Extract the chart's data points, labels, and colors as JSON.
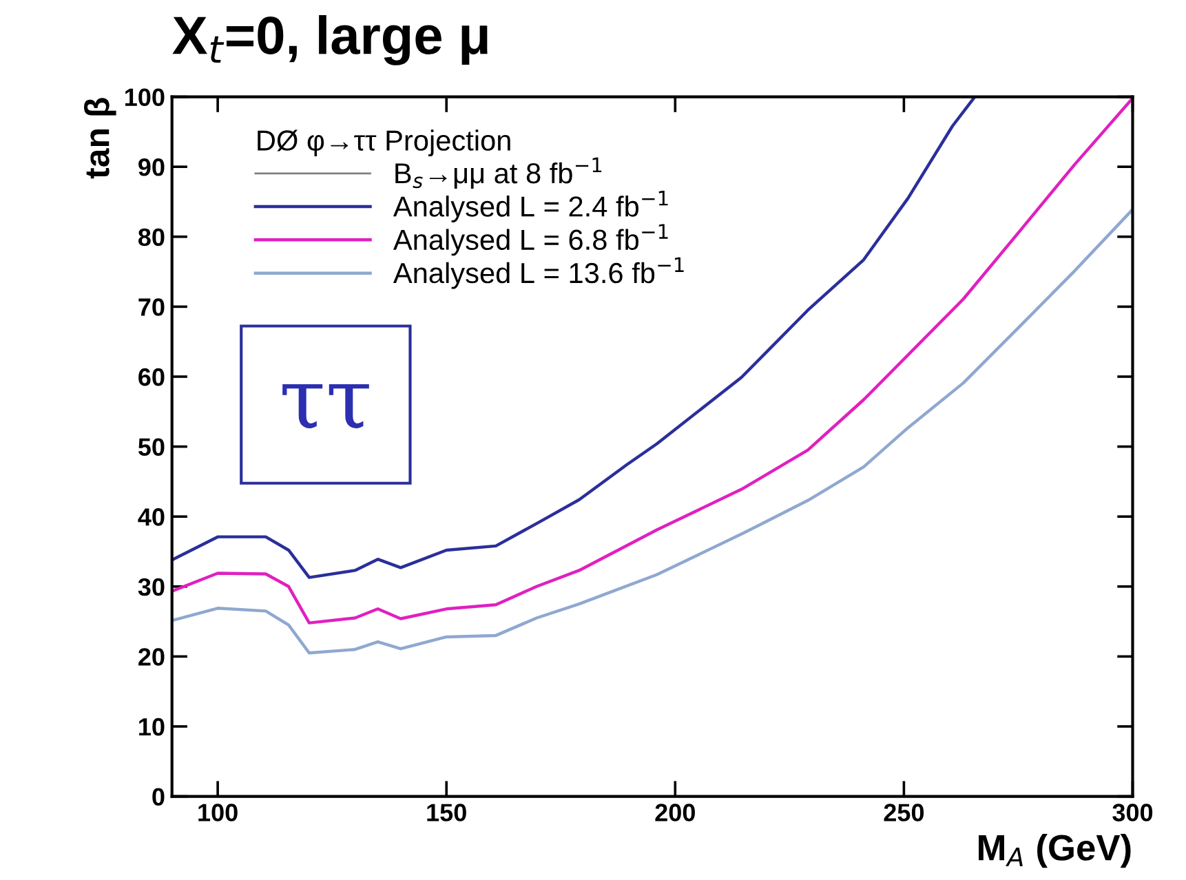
{
  "chart_data": {
    "type": "line",
    "title": "X$_{t}$=0, large μ",
    "xlabel": "M$_{A}$ (GeV)",
    "ylabel": "tan β",
    "legend_title": "DØ φ→ττ Projection",
    "xlim": [
      90,
      300
    ],
    "xticks": [
      100,
      150,
      200,
      250,
      300
    ],
    "ylim": [
      0,
      100
    ],
    "yticks": [
      0,
      10,
      20,
      30,
      40,
      50,
      60,
      70,
      80,
      90,
      100
    ],
    "grid": false,
    "legend": "top left",
    "marker": "none",
    "line_style": "solid",
    "annotations": [
      "ττ"
    ],
    "series": [
      {
        "name": "B$_{s}$→μμ at 8 fb$^{−1}$",
        "color": "#808080"
      },
      {
        "name": "Analysed L = 2.4 fb$^{−1}$",
        "color": "#2b2f9a",
        "x": [
          90.3,
          100,
          110.5,
          115.5,
          120,
          130,
          135,
          140,
          150,
          160.8,
          169.7,
          179,
          189.4,
          196,
          214.5,
          229,
          241.2,
          250.9,
          260.6,
          265.5
        ],
        "values": [
          33.9,
          37.1,
          37.1,
          35.2,
          31.3,
          32.3,
          33.9,
          32.7,
          35.2,
          35.8,
          39.0,
          42.4,
          47.4,
          50.4,
          59.9,
          69.5,
          76.7,
          85.5,
          95.8,
          100
        ]
      },
      {
        "name": "Analysed L = 6.8 fb$^{−1}$",
        "color": "#e020c0",
        "x": [
          90.3,
          100,
          110.5,
          115.5,
          120,
          130,
          135,
          140,
          150,
          160.8,
          169.7,
          179,
          196,
          214.5,
          229,
          241.2,
          250.9,
          263,
          275.2,
          287.3,
          300
        ],
        "values": [
          29.4,
          31.9,
          31.8,
          30.0,
          24.8,
          25.5,
          26.8,
          25.4,
          26.8,
          27.4,
          30.0,
          32.3,
          38.1,
          43.9,
          49.5,
          56.7,
          63.1,
          71.1,
          80.7,
          90.3,
          99.8
        ]
      },
      {
        "name": "Analysed L = 13.6 fb$^{−1}$",
        "color": "#8fa8d0",
        "x": [
          90.3,
          100,
          110.5,
          115.5,
          120,
          130,
          135,
          140,
          150,
          160.8,
          169.7,
          179,
          196,
          214.5,
          229,
          241.2,
          250.9,
          263,
          275.2,
          287.3,
          300
        ],
        "values": [
          25.2,
          26.9,
          26.5,
          24.5,
          20.5,
          21.0,
          22.1,
          21.1,
          22.8,
          23.0,
          25.5,
          27.5,
          31.7,
          37.5,
          42.3,
          47.1,
          52.7,
          59.1,
          67.1,
          75.1,
          83.9
        ]
      }
    ]
  }
}
